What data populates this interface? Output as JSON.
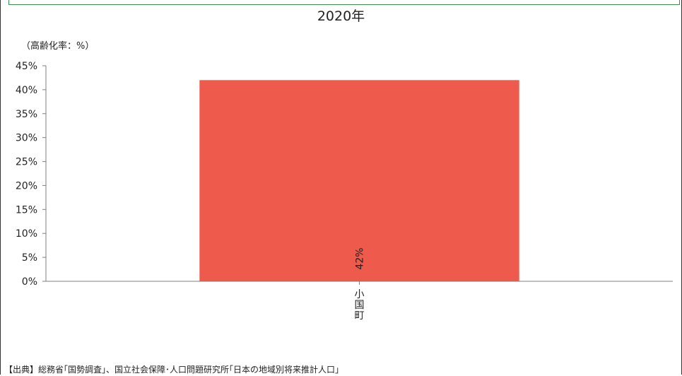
{
  "chart_data": {
    "type": "bar",
    "title": "2020年",
    "ylabel": "（高齢化率：%）",
    "xlabel": "",
    "categories": [
      "小国町"
    ],
    "values": [
      42
    ],
    "data_labels": [
      "42%"
    ],
    "ylim": [
      0,
      45
    ],
    "yticks": [
      "0%",
      "5%",
      "10%",
      "15%",
      "20%",
      "25%",
      "30%",
      "35%",
      "40%",
      "45%"
    ],
    "bar_color": "#ee5a4c",
    "grid": false,
    "legend": "none"
  },
  "source": "【出典】総務省｢国勢調査｣、国立社会保障･人口問題研究所｢日本の地域別将来推計人口｣",
  "colors": {
    "border": "#3c8f4f",
    "axis": "#7f7f7f"
  }
}
